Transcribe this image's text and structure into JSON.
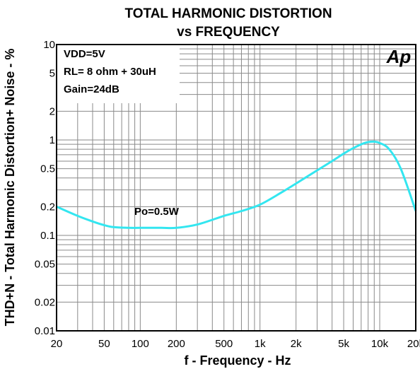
{
  "chart_data": {
    "type": "line",
    "title": "TOTAL HARMONIC DISTORTION",
    "subtitle": "vs FREQUENCY",
    "xlabel": "f - Frequency - Hz",
    "ylabel": "THD+N - Total Harmonic Distortion+ Noise - %",
    "xscale": "log",
    "yscale": "log",
    "xlim": [
      20,
      20000
    ],
    "ylim": [
      0.01,
      10
    ],
    "grid": true,
    "x_ticks": [
      {
        "value": 20,
        "label": "20"
      },
      {
        "value": 50,
        "label": "50"
      },
      {
        "value": 100,
        "label": "100"
      },
      {
        "value": 200,
        "label": "200"
      },
      {
        "value": 500,
        "label": "500"
      },
      {
        "value": 1000,
        "label": "1k"
      },
      {
        "value": 2000,
        "label": "2k"
      },
      {
        "value": 5000,
        "label": "5k"
      },
      {
        "value": 10000,
        "label": "10k"
      },
      {
        "value": 20000,
        "label": "20k"
      }
    ],
    "y_ticks": [
      {
        "value": 10,
        "label": "10"
      },
      {
        "value": 5,
        "label": "5"
      },
      {
        "value": 2,
        "label": "2"
      },
      {
        "value": 1,
        "label": "1"
      },
      {
        "value": 0.5,
        "label": "0.5"
      },
      {
        "value": 0.2,
        "label": "0.2"
      },
      {
        "value": 0.1,
        "label": "0.1"
      },
      {
        "value": 0.05,
        "label": "0.05"
      },
      {
        "value": 0.02,
        "label": "0.02"
      },
      {
        "value": 0.01,
        "label": "0.01"
      }
    ],
    "conditions": [
      "VDD=5V",
      "RL= 8 ohm + 30uH",
      "Gain=24dB"
    ],
    "series": [
      {
        "name": "Po=0.5W",
        "color": "#33e6f0",
        "x": [
          20,
          30,
          40,
          50,
          60,
          80,
          100,
          150,
          200,
          300,
          500,
          700,
          1000,
          1500,
          2000,
          3000,
          4000,
          5000,
          6000,
          7000,
          8000,
          9000,
          10000,
          12000,
          15000,
          20000
        ],
        "y": [
          0.2,
          0.16,
          0.14,
          0.128,
          0.122,
          0.12,
          0.12,
          0.12,
          0.12,
          0.13,
          0.16,
          0.18,
          0.21,
          0.28,
          0.35,
          0.48,
          0.6,
          0.72,
          0.82,
          0.9,
          0.95,
          0.96,
          0.93,
          0.8,
          0.5,
          0.18
        ]
      }
    ],
    "logo": "Ap",
    "logo_color": "#e8e800",
    "gridline_color": "#8a8a8a",
    "axis_color": "#000000"
  }
}
